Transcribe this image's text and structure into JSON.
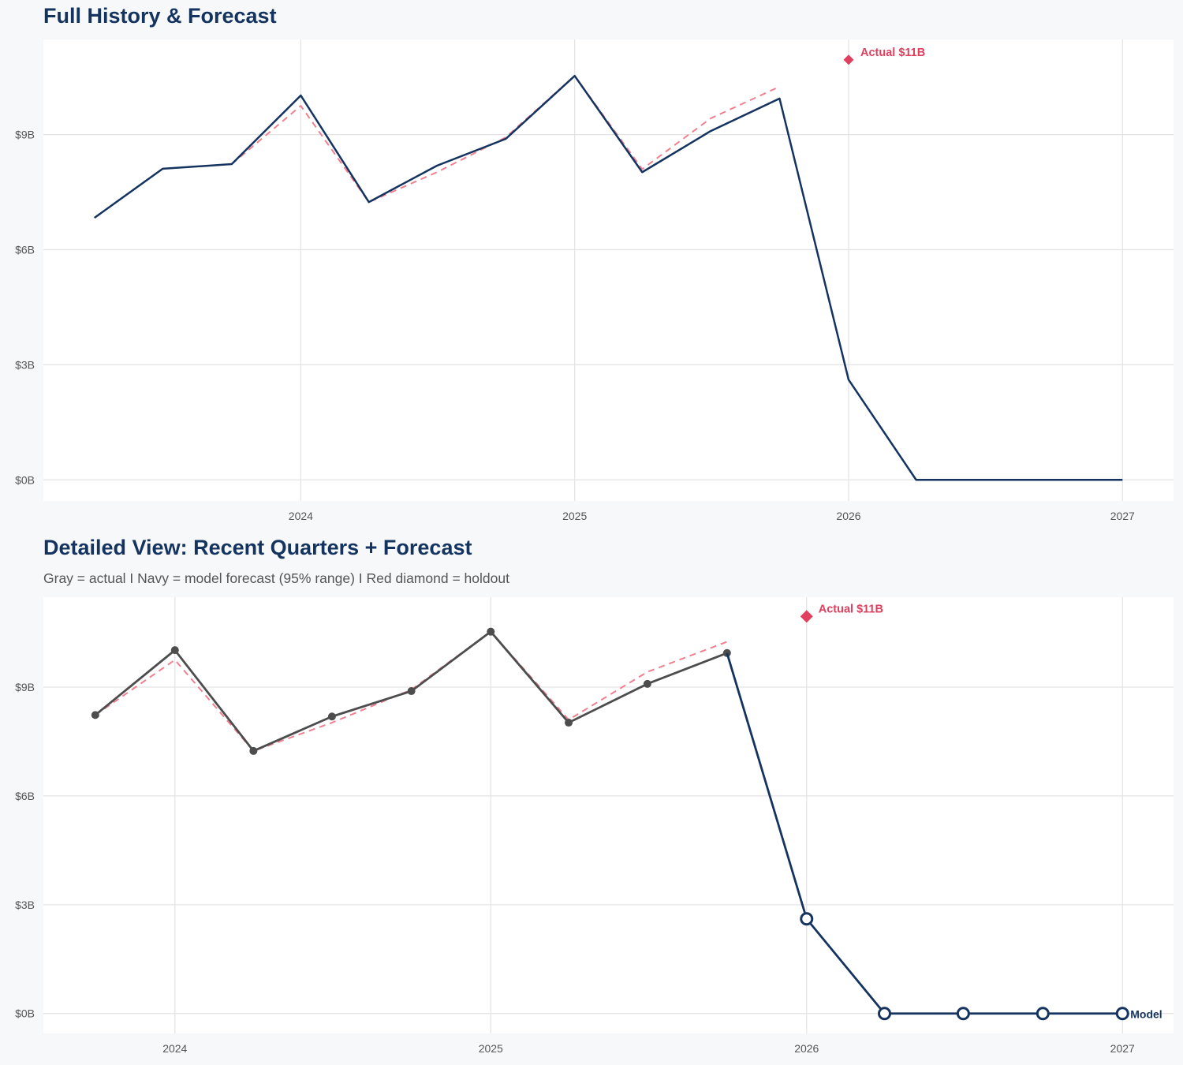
{
  "colors": {
    "navy": "#14335f",
    "gray": "#4d4d4d",
    "red": "#e0405e",
    "pink_dashed": "#f08090",
    "grid": "#e3e3e3",
    "panel": "#ffffff",
    "background": "#f7f8fa"
  },
  "chart_data": [
    {
      "type": "line",
      "title": "Full History & Forecast",
      "xlim": [
        "2023-01-23",
        "2027-03-10"
      ],
      "ylim": [
        -0.55,
        11.48
      ],
      "y_unit": "$B",
      "x_ticks": [
        "2024",
        "2025",
        "2026",
        "2027"
      ],
      "y_ticks": [
        "$0B",
        "$3B",
        "$6B",
        "$9B"
      ],
      "grid": true,
      "series": [
        {
          "role": "model",
          "color": "navy",
          "style": "solid",
          "x": [
            "2023-04-01",
            "2023-07-01",
            "2023-10-01",
            "2024-01-01",
            "2024-04-01",
            "2024-07-01",
            "2024-10-01",
            "2025-01-01",
            "2025-04-01",
            "2025-07-01",
            "2025-10-01",
            "2026-01-01",
            "2026-04-01",
            "2027-01-01"
          ],
          "y": [
            6.83,
            8.11,
            8.23,
            10.02,
            7.24,
            8.19,
            8.89,
            10.53,
            8.02,
            9.09,
            9.94,
            2.61,
            0,
            0
          ]
        },
        {
          "role": "fitted",
          "color": "pink_dashed",
          "style": "dashed",
          "x": [
            "2023-10-01",
            "2024-01-01",
            "2024-04-01",
            "2024-07-01",
            "2024-10-01",
            "2025-01-01",
            "2025-04-01",
            "2025-07-01",
            "2025-10-01"
          ],
          "y": [
            8.23,
            9.75,
            7.24,
            8.02,
            8.93,
            10.53,
            8.1,
            9.42,
            10.25
          ]
        }
      ],
      "annotations": [
        {
          "x": "2026-01-01",
          "y": 10.95,
          "marker": "diamond",
          "label": "Actual $11B"
        }
      ]
    },
    {
      "type": "line",
      "title": "Detailed View: Recent Quarters + Forecast",
      "subtitle": "Gray = actual  I  Navy = model forecast (95% range)  I  Red diamond = holdout",
      "xlim": [
        "2023-08-02",
        "2027-03-01"
      ],
      "ylim": [
        -0.55,
        11.48
      ],
      "y_unit": "$B",
      "x_ticks": [
        "2024",
        "2025",
        "2026",
        "2027"
      ],
      "y_ticks": [
        "$0B",
        "$3B",
        "$6B",
        "$9B"
      ],
      "grid": true,
      "series": [
        {
          "role": "actual",
          "color": "gray",
          "style": "solid",
          "markers": "filled",
          "x": [
            "2023-10-01",
            "2024-01-01",
            "2024-04-01",
            "2024-07-01",
            "2024-10-01",
            "2025-01-01",
            "2025-04-01",
            "2025-07-01",
            "2025-10-01"
          ],
          "y": [
            8.23,
            10.02,
            7.24,
            8.19,
            8.89,
            10.53,
            8.02,
            9.09,
            9.94
          ]
        },
        {
          "role": "fitted",
          "color": "pink_dashed",
          "style": "dashed",
          "x": [
            "2023-10-01",
            "2024-01-01",
            "2024-04-01",
            "2024-07-01",
            "2024-10-01",
            "2025-01-01",
            "2025-04-01",
            "2025-07-01",
            "2025-10-01"
          ],
          "y": [
            8.23,
            9.75,
            7.24,
            8.02,
            8.93,
            10.53,
            8.1,
            9.42,
            10.25
          ]
        },
        {
          "role": "forecast",
          "color": "navy",
          "style": "solid",
          "markers": "open",
          "marker_from": "2026-01-01",
          "x": [
            "2025-10-01",
            "2026-01-01",
            "2026-04-01",
            "2026-07-01",
            "2026-10-01",
            "2027-01-01"
          ],
          "y": [
            9.94,
            2.61,
            0,
            0,
            0,
            0
          ],
          "end_label": "Model"
        }
      ],
      "annotations": [
        {
          "x": "2026-01-01",
          "y": 10.95,
          "marker": "diamond",
          "label": "Actual $11B"
        }
      ]
    }
  ]
}
